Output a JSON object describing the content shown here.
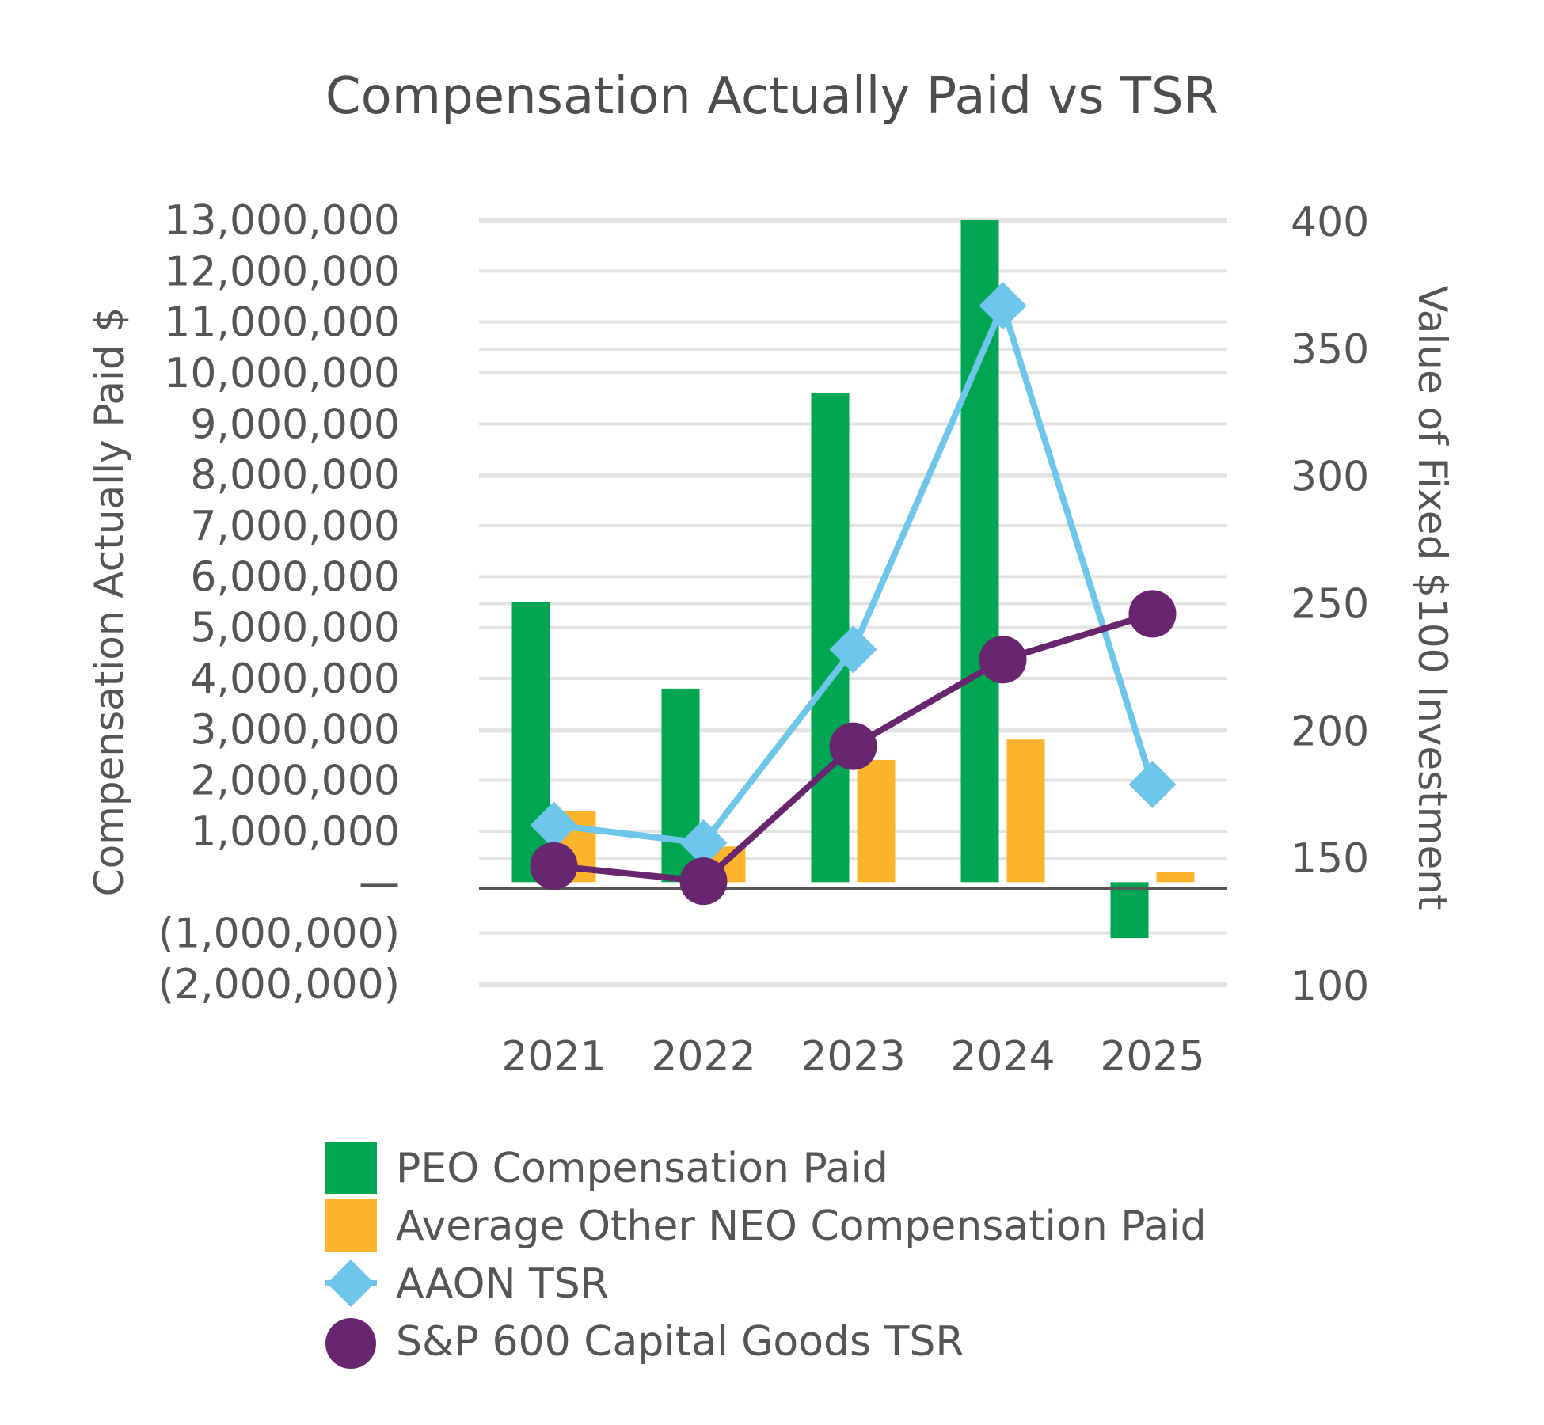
{
  "chart_data": {
    "type": "bar",
    "title": "Compensation Actually Paid vs TSR",
    "categories": [
      "2021",
      "2022",
      "2023",
      "2024",
      "2025"
    ],
    "ylabel_left": "Compensation Actually Paid $",
    "ylabel_right": "Value of Fixed $100 Investment",
    "ylim_left": [
      -2000000,
      13000000
    ],
    "ylim_right": [
      100,
      400
    ],
    "yticks_left": [
      "13,000,000",
      "12,000,000",
      "11,000,000",
      "10,000,000",
      "9,000,000",
      "8,000,000",
      "7,000,000",
      "6,000,000",
      "5,000,000",
      "4,000,000",
      "3,000,000",
      "2,000,000",
      "1,000,000",
      "—",
      "(1,000,000)",
      "(2,000,000)"
    ],
    "yticks_right": [
      "400",
      "350",
      "300",
      "250",
      "200",
      "150",
      "100"
    ],
    "grid": true,
    "series": [
      {
        "name": "PEO Compensation Paid",
        "kind": "bar",
        "axis": "left",
        "color": "#00a651",
        "values": [
          5500000,
          3800000,
          9600000,
          13000000,
          -1100000
        ]
      },
      {
        "name": "Average Other NEO Compensation Paid",
        "kind": "bar",
        "axis": "left",
        "color": "#fbb42c",
        "values": [
          1400000,
          700000,
          2400000,
          2800000,
          200000
        ]
      },
      {
        "name": "AAON TSR",
        "kind": "line",
        "marker": "diamond",
        "axis": "right",
        "color": "#6ec6ea",
        "values": [
          163,
          156,
          232,
          367,
          179
        ]
      },
      {
        "name": "S&P 600 Capital Goods TSR",
        "kind": "line",
        "marker": "circle",
        "axis": "right",
        "color": "#68266f",
        "values": [
          147,
          141,
          194,
          228,
          246
        ]
      }
    ],
    "legend_position": "bottom"
  }
}
